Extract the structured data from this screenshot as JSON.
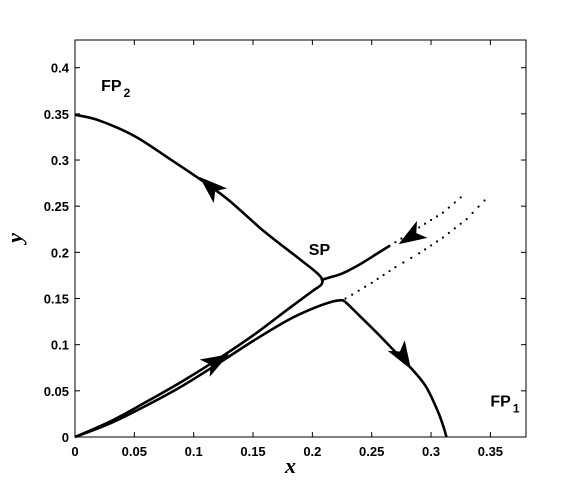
{
  "chart_data": {
    "type": "line",
    "title": "",
    "xlabel": "x",
    "ylabel": "y",
    "xlim": [
      0,
      0.38
    ],
    "ylim": [
      0,
      0.43
    ],
    "xticks": [
      "0",
      "0.05",
      "0.1",
      "0.15",
      "0.2",
      "0.25",
      "0.3",
      "0.35"
    ],
    "yticks": [
      "0",
      "0.05",
      "0.1",
      "0.15",
      "0.2",
      "0.25",
      "0.3",
      "0.35",
      "0.4"
    ],
    "grid": false,
    "annotations": [
      {
        "id": "fp2",
        "text": "FP",
        "sub": "2",
        "x": 0.022,
        "y": 0.375
      },
      {
        "id": "sp",
        "text": "SP",
        "sub": "",
        "x": 0.197,
        "y": 0.197
      },
      {
        "id": "fp1",
        "text": "FP",
        "sub": "1",
        "x": 0.35,
        "y": 0.033
      }
    ],
    "series": [
      {
        "style": "solid",
        "x": [
          0,
          0.03,
          0.06,
          0.09,
          0.12,
          0.15,
          0.18,
          0.2,
          0.208,
          0.206,
          0.19,
          0.16,
          0.13,
          0.11,
          0.08,
          0.05,
          0.02,
          0
        ],
        "y": [
          0,
          0.017,
          0.038,
          0.06,
          0.084,
          0.11,
          0.139,
          0.158,
          0.166,
          0.175,
          0.192,
          0.222,
          0.256,
          0.275,
          0.301,
          0.326,
          0.343,
          0.349
        ]
      },
      {
        "style": "solid",
        "x": [
          0,
          0.03,
          0.06,
          0.09,
          0.12,
          0.15,
          0.18,
          0.2,
          0.215,
          0.224,
          0.228,
          0.24,
          0.255,
          0.27,
          0.28,
          0.295,
          0.305,
          0.31,
          0.313
        ],
        "y": [
          0,
          0.015,
          0.034,
          0.055,
          0.079,
          0.104,
          0.127,
          0.139,
          0.146,
          0.148,
          0.146,
          0.131,
          0.112,
          0.092,
          0.079,
          0.056,
          0.03,
          0.013,
          0
        ]
      },
      {
        "style": "solid",
        "x": [
          0.207,
          0.215,
          0.225,
          0.24,
          0.255,
          0.265
        ],
        "y": [
          0.17,
          0.173,
          0.177,
          0.187,
          0.199,
          0.207
        ]
      },
      {
        "style": "dotted",
        "x": [
          0.265,
          0.28,
          0.295,
          0.31,
          0.33
        ],
        "y": [
          0.207,
          0.219,
          0.231,
          0.243,
          0.265
        ]
      },
      {
        "style": "dotted",
        "x": [
          0.228,
          0.25,
          0.27,
          0.29,
          0.31,
          0.33,
          0.35
        ],
        "y": [
          0.15,
          0.167,
          0.184,
          0.199,
          0.216,
          0.236,
          0.263
        ]
      }
    ],
    "arrows": [
      {
        "x": 0.115,
        "y": 0.27,
        "dir": "up-left"
      },
      {
        "x": 0.118,
        "y": 0.081,
        "dir": "up-right"
      },
      {
        "x": 0.276,
        "y": 0.088,
        "dir": "down-right"
      },
      {
        "x": 0.284,
        "y": 0.218,
        "dir": "down-left"
      }
    ]
  }
}
